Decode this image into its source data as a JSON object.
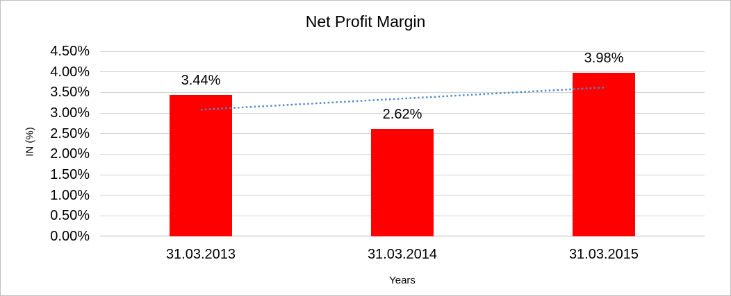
{
  "chart_data": {
    "type": "bar",
    "title": "Net Profit Margin",
    "xlabel": "Years",
    "ylabel": "IN (%)",
    "categories": [
      "31.03.2013",
      "31.03.2014",
      "31.03.2015"
    ],
    "values": [
      3.44,
      2.62,
      3.98
    ],
    "data_labels": [
      "3.44%",
      "2.62%",
      "3.98%"
    ],
    "ylim": [
      0,
      4.5
    ],
    "y_ticks": [
      {
        "value": 4.5,
        "label": "4.50%"
      },
      {
        "value": 4.0,
        "label": "4.00%"
      },
      {
        "value": 3.5,
        "label": "3.50%"
      },
      {
        "value": 3.0,
        "label": "3.00%"
      },
      {
        "value": 2.5,
        "label": "2.50%"
      },
      {
        "value": 2.0,
        "label": "2.00%"
      },
      {
        "value": 1.5,
        "label": "1.50%"
      },
      {
        "value": 1.0,
        "label": "1.00%"
      },
      {
        "value": 0.5,
        "label": "0.50%"
      },
      {
        "value": 0.0,
        "label": "0.00%"
      }
    ],
    "grid": true,
    "legend": "none",
    "bar_color": "#ff0000",
    "grid_color": "#d2d2d2",
    "trendline": {
      "type": "linear",
      "style": "dotted",
      "color": "#4f8bc9",
      "points": [
        {
          "category_index": 0,
          "value": 3.08
        },
        {
          "category_index": 2,
          "value": 3.62
        }
      ]
    }
  }
}
